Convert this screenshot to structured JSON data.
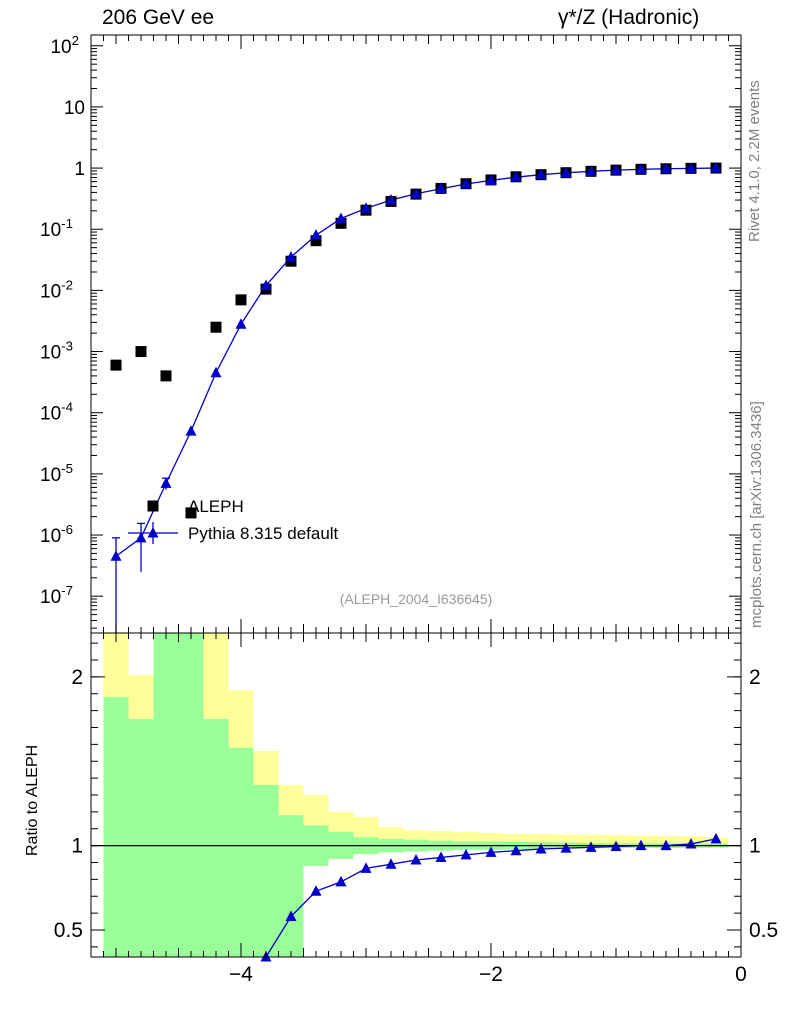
{
  "header": {
    "left": "206 GeV ee",
    "right": "γ*/Z (Hadronic)"
  },
  "side_labels": {
    "rivet": "Rivet 4.1.0,  2.2M events",
    "mcplots": "mcplots.cern.ch [arXiv:1306.3436]"
  },
  "chart_data": [
    {
      "type": "scatter",
      "panel": "main",
      "y_scale": "log",
      "xlim": [
        -5.2,
        0
      ],
      "ylim": [
        2.5e-08,
        150
      ],
      "ytick_labels": [
        "10^2",
        "10",
        "1",
        "10^-1",
        "10^-2",
        "10^-3",
        "10^-4",
        "10^-5",
        "10^-6",
        "10^-7"
      ],
      "legend_placement": "lower-left",
      "annotation": "(ALEPH_2004_I636645)",
      "colors": {
        "data": "#000000",
        "mc": "#0000cc"
      },
      "series": [
        {
          "name": "ALEPH",
          "marker": "square",
          "x": [
            -5.0,
            -4.8,
            -4.6,
            -4.4,
            -4.2,
            -4.0,
            -3.8,
            -3.6,
            -3.4,
            -3.2,
            -3.0,
            -2.8,
            -2.6,
            -2.4,
            -2.2,
            -2.0,
            -1.8,
            -1.6,
            -1.4,
            -1.2,
            -1.0,
            -0.8,
            -0.6,
            -0.4,
            -0.2
          ],
          "y": [
            0.0006,
            0.001,
            0.0004,
            2.3e-06,
            0.0025,
            0.007,
            0.0105,
            0.03,
            0.065,
            0.125,
            0.205,
            0.285,
            0.375,
            0.465,
            0.555,
            0.64,
            0.72,
            0.78,
            0.84,
            0.885,
            0.925,
            0.955,
            0.975,
            0.99,
            1.0
          ]
        },
        {
          "name": "Pythia 8.315 default",
          "marker": "triangle",
          "x": [
            -5.0,
            -4.8,
            -4.6,
            -4.4,
            -4.2,
            -4.0,
            -3.8,
            -3.6,
            -3.4,
            -3.2,
            -3.0,
            -2.8,
            -2.6,
            -2.4,
            -2.2,
            -2.0,
            -1.8,
            -1.6,
            -1.4,
            -1.2,
            -1.0,
            -0.8,
            -0.6,
            -0.4,
            -0.2
          ],
          "y": [
            4.5e-07,
            9e-07,
            7e-06,
            5e-05,
            0.00045,
            0.0028,
            0.012,
            0.035,
            0.08,
            0.15,
            0.22,
            0.3,
            0.38,
            0.46,
            0.55,
            0.63,
            0.71,
            0.78,
            0.84,
            0.885,
            0.925,
            0.955,
            0.975,
            0.99,
            1.0
          ],
          "yerr": [
            4.5e-07,
            6.5e-07,
            1.5e-06,
            0,
            0,
            0,
            0,
            0,
            0,
            0,
            0,
            0,
            0,
            0,
            0,
            0,
            0,
            0,
            0,
            0,
            0,
            0,
            0,
            0,
            0
          ]
        }
      ]
    },
    {
      "type": "line",
      "panel": "ratio",
      "ylabel": "Ratio to ALEPH",
      "xlim": [
        -5.2,
        0
      ],
      "ylim": [
        0.34,
        2.26
      ],
      "xtick_labels": [
        "−4",
        "−2",
        "0"
      ],
      "ytick_labels": [
        "0.5",
        "1",
        "2"
      ],
      "bands": {
        "x_edges": [
          -5.1,
          -4.9,
          -4.7,
          -4.5,
          -4.3,
          -4.1,
          -3.9,
          -3.7,
          -3.5,
          -3.3,
          -3.1,
          -2.9,
          -2.7,
          -2.5,
          -2.3,
          -2.1,
          -1.9,
          -1.7,
          -1.5,
          -1.3,
          -1.1,
          -0.9,
          -0.7,
          -0.5,
          -0.3,
          -0.1
        ],
        "inner_lo": [
          0.34,
          0.34,
          0.34,
          0.34,
          0.34,
          0.34,
          0.34,
          0.34,
          0.88,
          0.92,
          0.95,
          0.96,
          0.965,
          0.97,
          0.975,
          0.975,
          0.978,
          0.98,
          0.982,
          0.984,
          0.985,
          0.986,
          0.986,
          0.987,
          0.988
        ],
        "inner_hi": [
          1.88,
          1.75,
          2.26,
          2.26,
          1.75,
          1.58,
          1.36,
          1.18,
          1.12,
          1.08,
          1.05,
          1.04,
          1.035,
          1.03,
          1.025,
          1.025,
          1.022,
          1.02,
          1.018,
          1.016,
          1.015,
          1.014,
          1.014,
          1.013,
          1.012
        ],
        "outer_lo": [
          0.34,
          0.34,
          0.34,
          0.34,
          0.34,
          0.34,
          0.34,
          0.34,
          0.88,
          0.92,
          0.95,
          0.96,
          0.965,
          0.97,
          0.975,
          0.975,
          0.978,
          0.98,
          0.982,
          0.984,
          0.985,
          0.986,
          0.986,
          0.987,
          0.988
        ],
        "outer_hi": [
          2.26,
          2.01,
          2.26,
          2.26,
          2.26,
          1.92,
          1.56,
          1.36,
          1.3,
          1.2,
          1.17,
          1.11,
          1.09,
          1.085,
          1.08,
          1.075,
          1.07,
          1.068,
          1.066,
          1.064,
          1.062,
          1.06,
          1.058,
          1.055,
          1.05
        ],
        "colors": {
          "inner": "#99ff99",
          "outer": "#ffff99"
        }
      },
      "series": [
        {
          "name": "Pythia 8.315 default",
          "x": [
            -3.8,
            -3.6,
            -3.4,
            -3.2,
            -3.0,
            -2.8,
            -2.6,
            -2.4,
            -2.2,
            -2.0,
            -1.8,
            -1.6,
            -1.4,
            -1.2,
            -1.0,
            -0.8,
            -0.6,
            -0.4,
            -0.2
          ],
          "y": [
            0.34,
            0.58,
            0.73,
            0.785,
            0.865,
            0.89,
            0.915,
            0.93,
            0.945,
            0.96,
            0.97,
            0.98,
            0.985,
            0.99,
            0.995,
            1.0,
            1.0,
            1.01,
            1.04
          ]
        }
      ]
    }
  ]
}
